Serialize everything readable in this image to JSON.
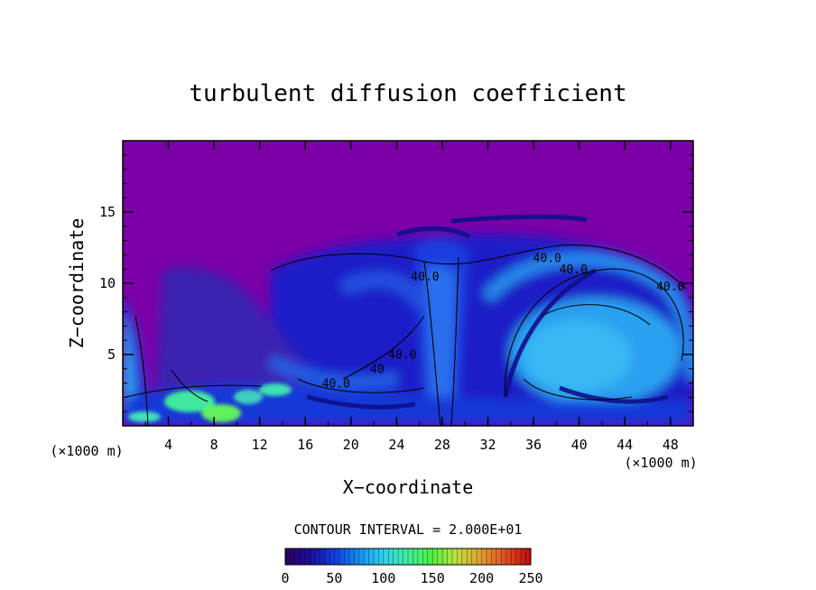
{
  "chart_data": {
    "type": "heatmap",
    "title": "turbulent diffusion coefficient",
    "xlabel": "X−coordinate",
    "ylabel": "Z−coordinate",
    "x_unit": "(×1000 m)",
    "z_unit": "(×1000 m)",
    "xlim": [
      0,
      50
    ],
    "ylim": [
      0,
      20
    ],
    "x_ticks": [
      "4",
      "8",
      "12",
      "16",
      "20",
      "24",
      "28",
      "32",
      "36",
      "40",
      "44",
      "48"
    ],
    "y_ticks": [
      "5",
      "10",
      "15"
    ],
    "contour_interval_label": "CONTOUR INTERVAL = 2.000E+01",
    "contour_interval": 20,
    "contour_labels": [
      {
        "text": "40.0",
        "x": 26.5,
        "z": 10.2
      },
      {
        "text": "40.0",
        "x": 37.2,
        "z": 11.5
      },
      {
        "text": "40.0",
        "x": 39.5,
        "z": 10.7
      },
      {
        "text": "40.0",
        "x": 48.0,
        "z": 9.5
      },
      {
        "text": "40.0",
        "x": 24.5,
        "z": 4.7
      },
      {
        "text": "40.0",
        "x": 18.7,
        "z": 2.7
      },
      {
        "text": "40",
        "x": 22.3,
        "z": 3.7
      }
    ],
    "colorbar": {
      "range": [
        0,
        250
      ],
      "ticks": [
        "0",
        "50",
        "100",
        "150",
        "200",
        "250"
      ],
      "colors": [
        "#2a0060",
        "#1a10a0",
        "#1040e0",
        "#1890f0",
        "#30d0f0",
        "#40f0a0",
        "#50f040",
        "#c0e040",
        "#e0a030",
        "#e05020",
        "#c01010"
      ]
    },
    "background_color": "#7c00a8"
  }
}
